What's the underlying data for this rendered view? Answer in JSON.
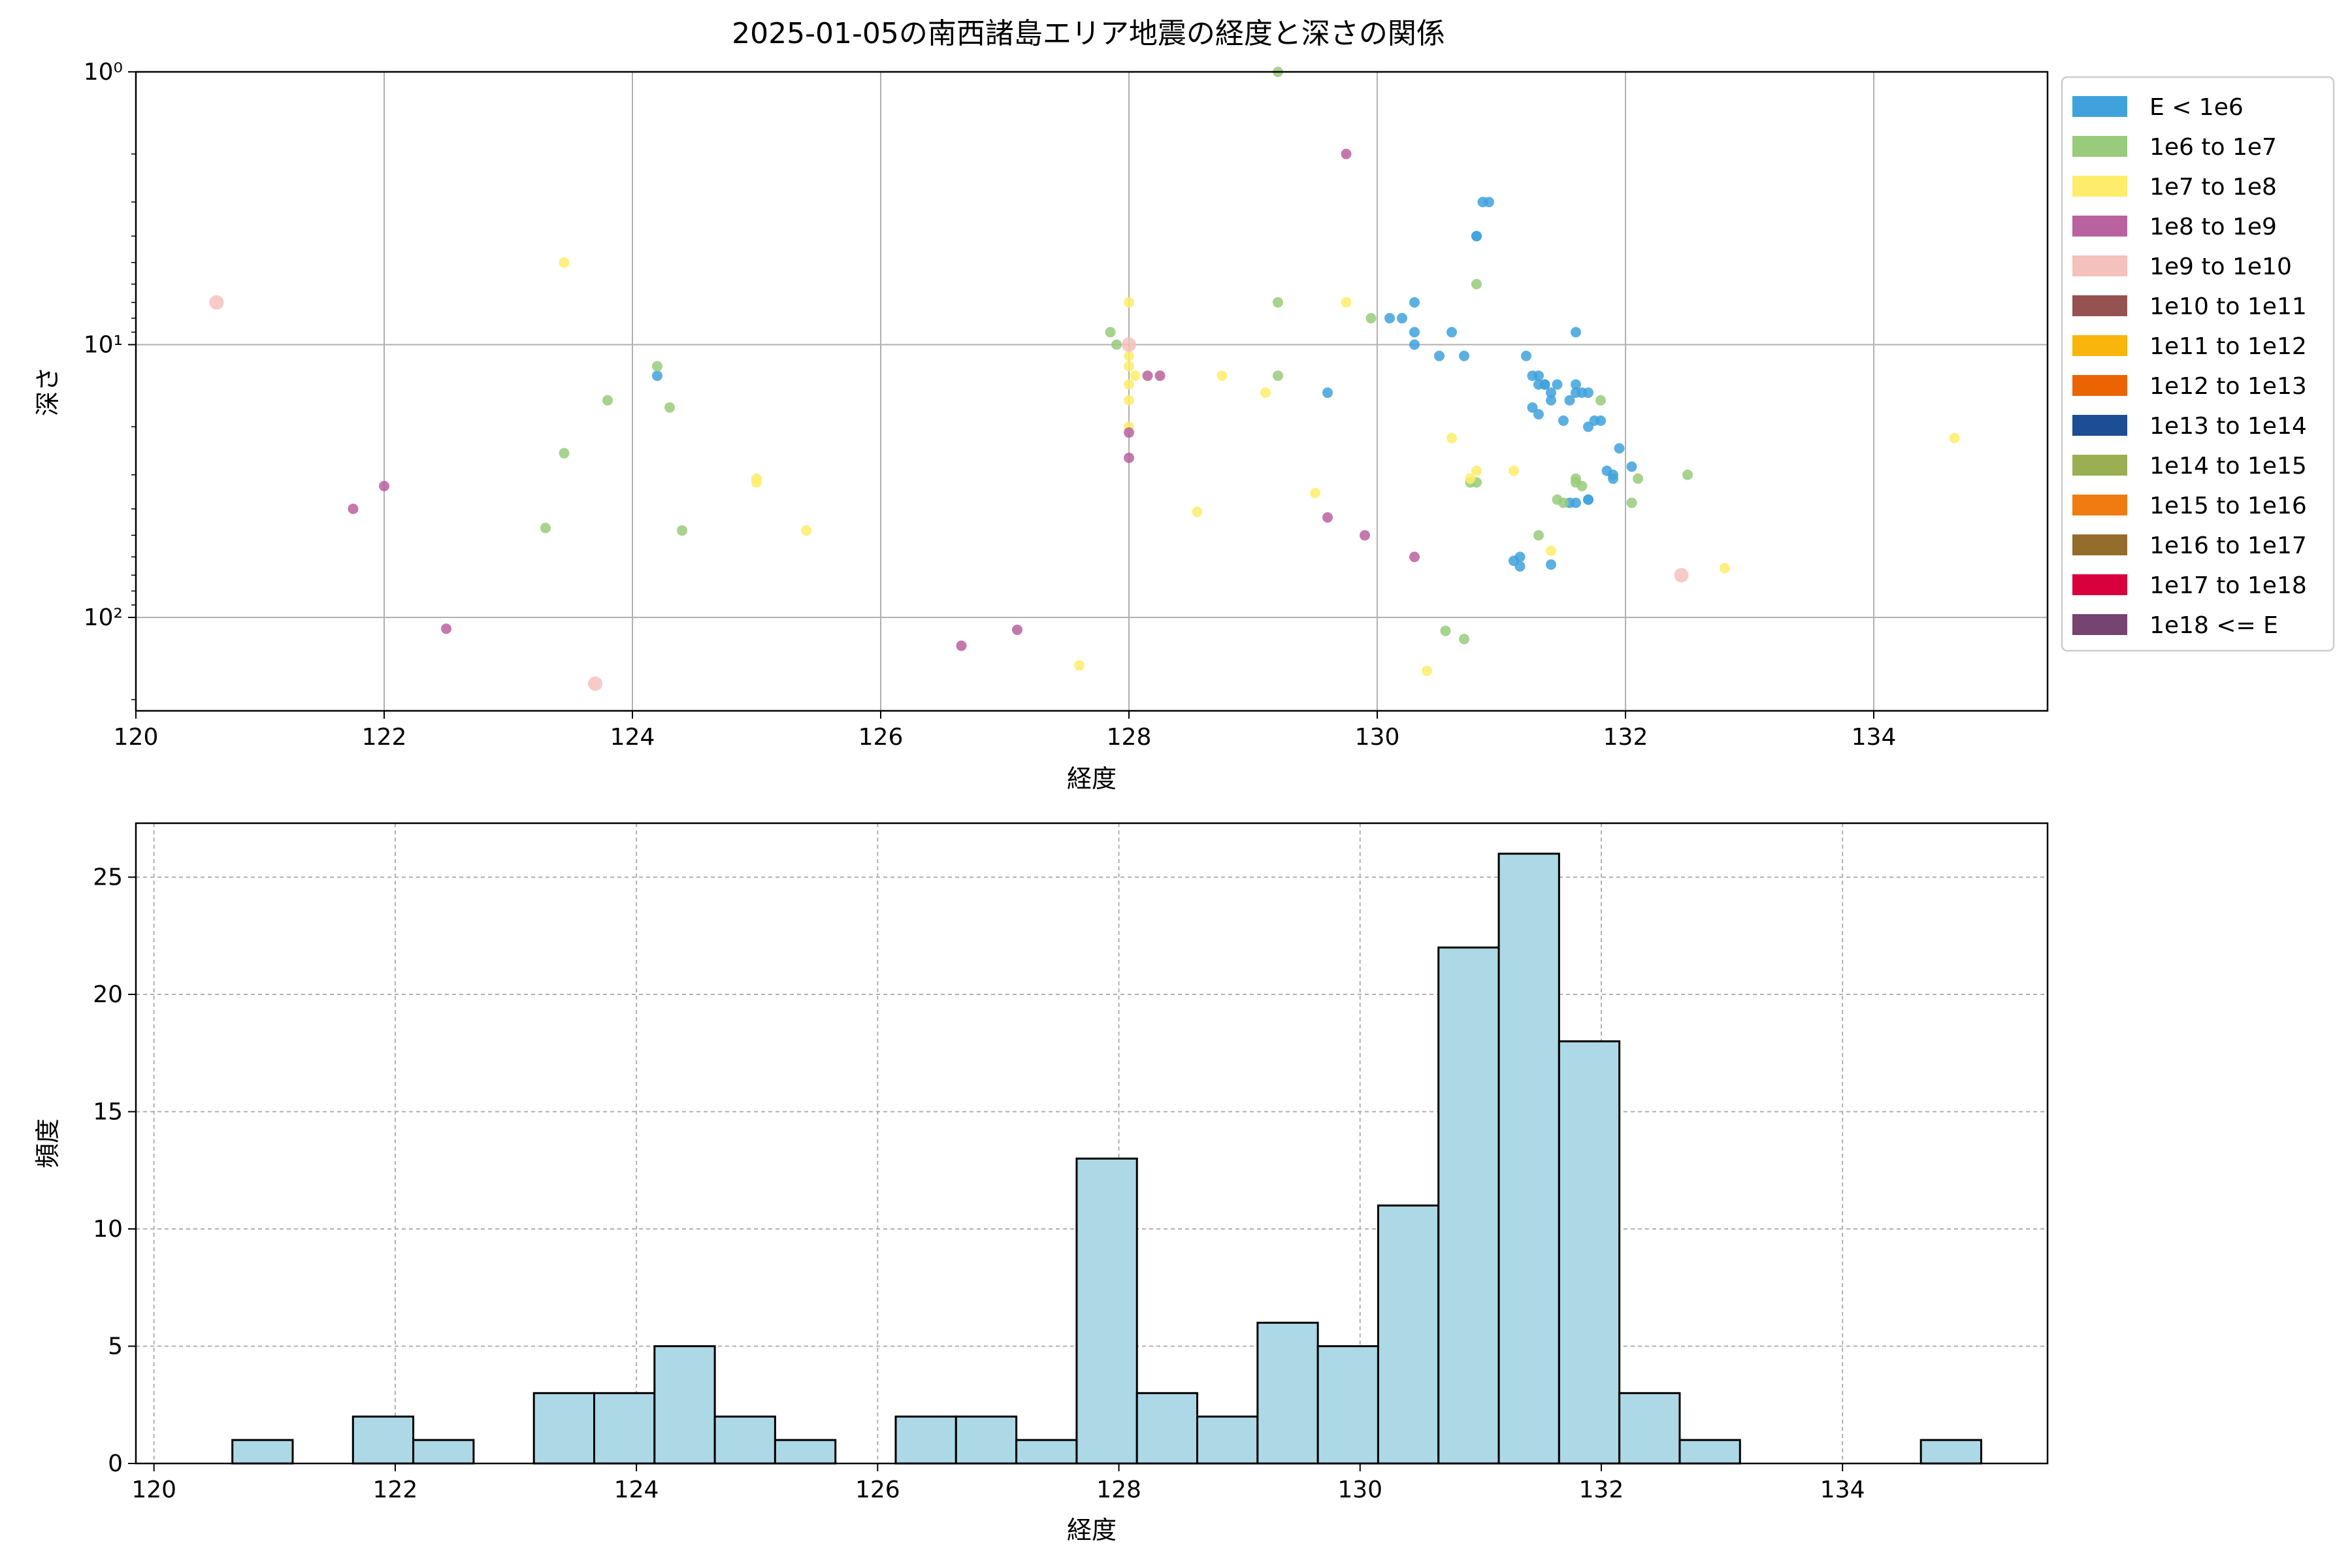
{
  "chart_data": [
    {
      "type": "scatter",
      "title": "2025-01-05の南西諸島エリア地震の経度と深さの関係",
      "xlabel": "経度",
      "ylabel": "深さ",
      "y_scale": "log",
      "y_inverted": true,
      "xlim": [
        120,
        135.4
      ],
      "ylim": [
        1,
        220
      ],
      "xticks": [
        120,
        122,
        124,
        126,
        128,
        130,
        132,
        134
      ],
      "yticks": [
        {
          "value": 1,
          "label": "10⁰"
        },
        {
          "value": 10,
          "label": "10¹"
        },
        {
          "value": 100,
          "label": "10²"
        }
      ],
      "grid": true,
      "legend_position": "outside-right",
      "legend": [
        {
          "label": "E < 1e6",
          "color": "#3fa2dc"
        },
        {
          "label": "1e6 to 1e7",
          "color": "#98cb7b"
        },
        {
          "label": "1e7 to 1e8",
          "color": "#fded6a"
        },
        {
          "label": "1e8 to 1e9",
          "color": "#b8629f"
        },
        {
          "label": "1e9 to 1e10",
          "color": "#f4c1bd"
        },
        {
          "label": "1e10 to 1e11",
          "color": "#955251"
        },
        {
          "label": "1e11 to 1e12",
          "color": "#f9b50b"
        },
        {
          "label": "1e12 to 1e13",
          "color": "#ec6304"
        },
        {
          "label": "1e13 to 1e14",
          "color": "#1d4d94"
        },
        {
          "label": "1e14 to 1e15",
          "color": "#9aaf52"
        },
        {
          "label": "1e15 to 1e16",
          "color": "#ef7b11"
        },
        {
          "label": "1e16 to 1e17",
          "color": "#946c2b"
        },
        {
          "label": "1e17 to 1e18",
          "color": "#d9003e"
        },
        {
          "label": "1e18 <= E",
          "color": "#764471"
        }
      ],
      "series": [
        {
          "name": "E < 1e6",
          "color": "#3fa2dc",
          "points": [
            [
              124.2,
              13
            ],
            [
              129.6,
              15
            ],
            [
              130.1,
              8
            ],
            [
              130.2,
              8
            ],
            [
              130.3,
              7
            ],
            [
              130.3,
              9
            ],
            [
              130.3,
              10
            ],
            [
              130.5,
              11
            ],
            [
              130.6,
              9
            ],
            [
              130.7,
              11
            ],
            [
              130.8,
              4
            ],
            [
              130.85,
              3
            ],
            [
              130.9,
              3
            ],
            [
              130.8,
              4
            ],
            [
              131.1,
              62
            ],
            [
              131.15,
              60
            ],
            [
              131.15,
              65
            ],
            [
              131.2,
              11
            ],
            [
              131.25,
              13
            ],
            [
              131.3,
              13
            ],
            [
              131.25,
              17
            ],
            [
              131.3,
              18
            ],
            [
              131.35,
              14
            ],
            [
              131.4,
              15
            ],
            [
              131.4,
              16
            ],
            [
              131.45,
              14
            ],
            [
              131.5,
              19
            ],
            [
              131.55,
              38
            ],
            [
              131.6,
              9
            ],
            [
              131.6,
              14
            ],
            [
              131.6,
              15
            ],
            [
              131.65,
              15
            ],
            [
              131.7,
              15
            ],
            [
              131.7,
              20
            ],
            [
              131.75,
              19
            ],
            [
              131.8,
              19
            ],
            [
              131.9,
              30
            ],
            [
              131.95,
              24
            ],
            [
              131.9,
              31
            ],
            [
              131.6,
              38
            ],
            [
              131.7,
              37
            ],
            [
              131.4,
              64
            ],
            [
              132.05,
              28
            ],
            [
              131.85,
              29
            ],
            [
              131.3,
              14
            ],
            [
              131.35,
              14
            ],
            [
              131.55,
              16
            ],
            [
              131.7,
              37
            ]
          ]
        },
        {
          "name": "1e6 to 1e7",
          "color": "#98cb7b",
          "points": [
            [
              124.2,
              12
            ],
            [
              123.8,
              16
            ],
            [
              124.3,
              17
            ],
            [
              123.45,
              25
            ],
            [
              123.3,
              47
            ],
            [
              124.4,
              48
            ],
            [
              127.85,
              9
            ],
            [
              127.9,
              10
            ],
            [
              129.2,
              1
            ],
            [
              129.2,
              7
            ],
            [
              129.2,
              13
            ],
            [
              129.95,
              8
            ],
            [
              130.8,
              6
            ],
            [
              130.75,
              32
            ],
            [
              130.8,
              32
            ],
            [
              131.3,
              50
            ],
            [
              131.45,
              37
            ],
            [
              131.5,
              38
            ],
            [
              131.6,
              31
            ],
            [
              131.6,
              32
            ],
            [
              131.65,
              33
            ],
            [
              131.8,
              16
            ],
            [
              132.1,
              31
            ],
            [
              132.05,
              38
            ],
            [
              132.5,
              30
            ],
            [
              130.55,
              112
            ],
            [
              130.7,
              120
            ]
          ]
        },
        {
          "name": "1e7 to 1e8",
          "color": "#fded6a",
          "points": [
            [
              123.45,
              5
            ],
            [
              125.0,
              32
            ],
            [
              125.0,
              31
            ],
            [
              125.4,
              48
            ],
            [
              127.6,
              150
            ],
            [
              128.0,
              7
            ],
            [
              128.0,
              11
            ],
            [
              128.0,
              12
            ],
            [
              128.0,
              14
            ],
            [
              128.0,
              16
            ],
            [
              128.0,
              20
            ],
            [
              128.05,
              13
            ],
            [
              128.55,
              41
            ],
            [
              128.75,
              13
            ],
            [
              129.1,
              15
            ],
            [
              129.5,
              35
            ],
            [
              129.75,
              7
            ],
            [
              130.6,
              22
            ],
            [
              130.75,
              31
            ],
            [
              130.8,
              29
            ],
            [
              130.4,
              157
            ],
            [
              131.1,
              29
            ],
            [
              131.4,
              57
            ],
            [
              132.8,
              66
            ],
            [
              134.65,
              22
            ]
          ]
        },
        {
          "name": "1e8 to 1e9",
          "color": "#b8629f",
          "points": [
            [
              121.75,
              40
            ],
            [
              122.0,
              33
            ],
            [
              122.5,
              110
            ],
            [
              126.65,
              127
            ],
            [
              127.1,
              111
            ],
            [
              128.0,
              21
            ],
            [
              128.0,
              26
            ],
            [
              128.15,
              13
            ],
            [
              128.25,
              13
            ],
            [
              129.6,
              43
            ],
            [
              129.75,
              2
            ],
            [
              129.9,
              50
            ],
            [
              130.3,
              60
            ]
          ]
        },
        {
          "name": "1e9 to 1e10",
          "color": "#f4c1bd",
          "points": [
            [
              120.65,
              7
            ],
            [
              123.7,
              175
            ],
            [
              128.0,
              10
            ],
            [
              132.45,
              70
            ]
          ]
        }
      ]
    },
    {
      "type": "bar",
      "subtype": "histogram",
      "title": "",
      "xlabel": "経度",
      "ylabel": "頻度",
      "xlim": [
        119.85,
        135.7
      ],
      "ylim": [
        0,
        27.3
      ],
      "xticks": [
        120,
        122,
        124,
        126,
        128,
        130,
        132,
        134
      ],
      "yticks": [
        0,
        5,
        10,
        15,
        20,
        25
      ],
      "grid": true,
      "bar_color": "#add8e6",
      "bar_edge_color": "#000000",
      "bin_start": 120.65,
      "bin_width": 0.5,
      "counts": [
        1,
        0,
        2,
        1,
        0,
        3,
        3,
        5,
        2,
        1,
        0,
        2,
        2,
        1,
        13,
        3,
        2,
        6,
        5,
        11,
        22,
        26,
        18,
        3,
        1,
        0,
        0,
        0,
        1
      ]
    }
  ]
}
